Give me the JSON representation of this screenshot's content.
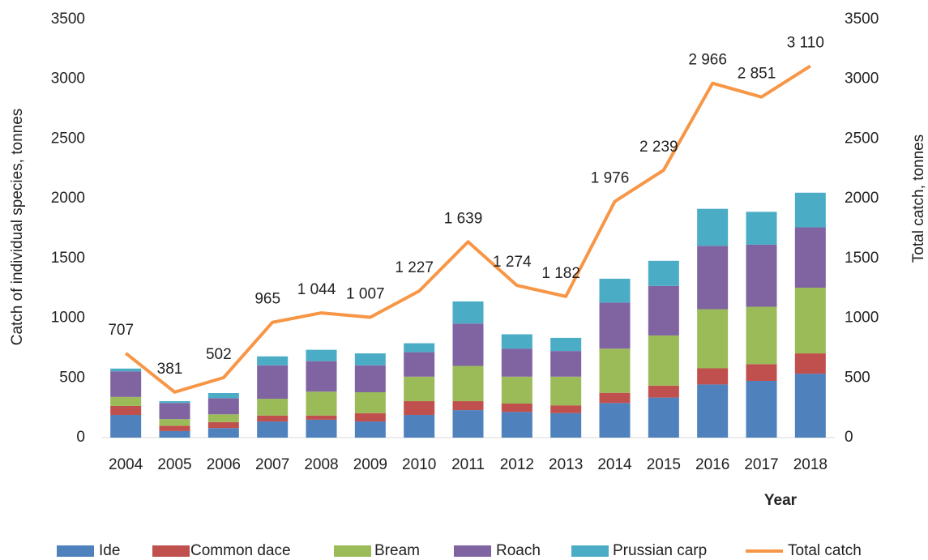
{
  "chart_data": {
    "type": "bar",
    "categories": [
      "2004",
      "2005",
      "2006",
      "2007",
      "2008",
      "2009",
      "2010",
      "2011",
      "2012",
      "2013",
      "2014",
      "2015",
      "2016",
      "2017",
      "2018"
    ],
    "stacked": true,
    "series": [
      {
        "name": "Ide",
        "color": "#4f81bd",
        "values": [
          190,
          55,
          80,
          135,
          150,
          135,
          190,
          230,
          215,
          205,
          290,
          335,
          445,
          475,
          535
        ]
      },
      {
        "name": "Common dace",
        "color": "#c0504d",
        "values": [
          75,
          45,
          50,
          50,
          35,
          70,
          115,
          75,
          70,
          65,
          85,
          100,
          135,
          140,
          170
        ]
      },
      {
        "name": "Bream",
        "color": "#9bbb59",
        "values": [
          75,
          55,
          65,
          140,
          200,
          175,
          205,
          295,
          225,
          240,
          370,
          420,
          495,
          480,
          550
        ]
      },
      {
        "name": "Roach",
        "color": "#8064a2",
        "values": [
          215,
          135,
          135,
          280,
          255,
          225,
          205,
          355,
          235,
          215,
          385,
          415,
          530,
          520,
          505
        ]
      },
      {
        "name": "Prussian carp",
        "color": "#4bacc6",
        "values": [
          23,
          15,
          43,
          75,
          95,
          100,
          75,
          185,
          120,
          110,
          200,
          210,
          310,
          275,
          290
        ]
      },
      {
        "name": "Total catch",
        "color": "#f79646",
        "type": "line",
        "axis": "y2",
        "values": [
          707,
          381,
          502,
          965,
          1044,
          1007,
          1227,
          1639,
          1274,
          1182,
          1976,
          2239,
          2966,
          2851,
          3110
        ],
        "value_labels": [
          "707",
          "381",
          "502",
          "965",
          "1 044",
          "1 007",
          "1 227",
          "1 639",
          "1 274",
          "1 182",
          "1 976",
          "2 239",
          "2 966",
          "2 851",
          "3 110"
        ]
      }
    ],
    "y_label": "Catch of individual species, tonnes",
    "y2_label": "Total catch, tonnes",
    "x_label": "Year",
    "ylim": [
      0,
      3500
    ],
    "yticks": [
      0,
      500,
      1000,
      1500,
      2000,
      2500,
      3000,
      3500
    ],
    "y2lim": [
      0,
      3500
    ],
    "y2ticks": [
      0,
      500,
      1000,
      1500,
      2000,
      2500,
      3000,
      3500
    ],
    "grid": false,
    "legend": "bottom"
  }
}
